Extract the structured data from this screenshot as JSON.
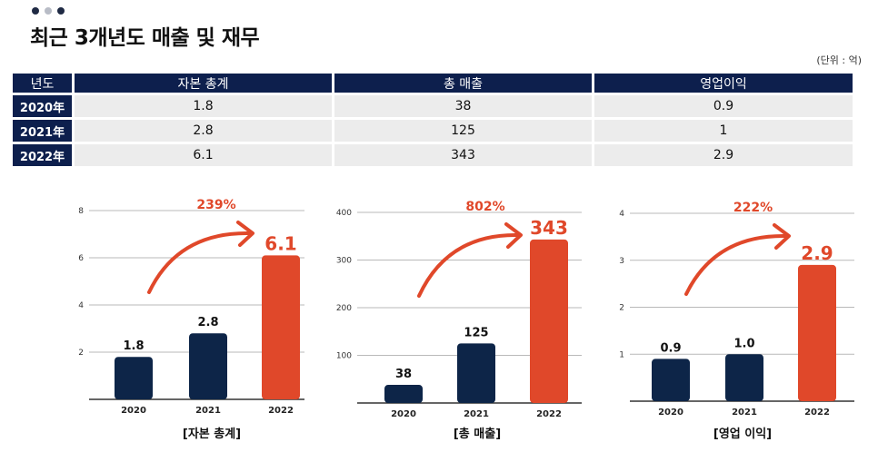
{
  "title": "최근 3개년도 매출 및 재무",
  "unit_note": "(단위 : 억)",
  "colors": {
    "navy": "#0d2548",
    "orange": "#e0482a",
    "header": "#0d1f4d",
    "dot_dark": "#1f2a44",
    "dot_light": "#b8bcc6"
  },
  "table": {
    "headers": [
      "년도",
      "자본 총계",
      "총 매출",
      "영업이익"
    ],
    "rows": [
      {
        "year": "2020年",
        "capital": "1.8",
        "sales": "38",
        "op": "0.9"
      },
      {
        "year": "2021年",
        "capital": "2.8",
        "sales": "125",
        "op": "1"
      },
      {
        "year": "2022年",
        "capital": "6.1",
        "sales": "343",
        "op": "2.9"
      }
    ]
  },
  "chart_data": [
    {
      "type": "bar",
      "caption": "[자본 총계]",
      "categories": [
        "2020",
        "2021",
        "2022"
      ],
      "values": [
        1.8,
        2.8,
        6.1
      ],
      "value_labels": [
        "1.8",
        "2.8",
        "6.1"
      ],
      "growth_label": "239%",
      "ylim": [
        0,
        8
      ],
      "yticks": [
        2,
        4,
        6,
        8
      ],
      "grid": true
    },
    {
      "type": "bar",
      "caption": "[총 매출]",
      "categories": [
        "2020",
        "2021",
        "2022"
      ],
      "values": [
        38,
        125,
        343
      ],
      "value_labels": [
        "38",
        "125",
        "343"
      ],
      "growth_label": "802%",
      "ylim": [
        0,
        400
      ],
      "yticks": [
        100,
        200,
        300,
        400
      ],
      "grid": true
    },
    {
      "type": "bar",
      "caption": "[영업 이익]",
      "categories": [
        "2020",
        "2021",
        "2022"
      ],
      "values": [
        0.9,
        1.0,
        2.9
      ],
      "value_labels": [
        "0.9",
        "1.0",
        "2.9"
      ],
      "growth_label": "222%",
      "ylim": [
        0,
        4
      ],
      "yticks": [
        1,
        2,
        3,
        4
      ],
      "grid": true
    }
  ]
}
